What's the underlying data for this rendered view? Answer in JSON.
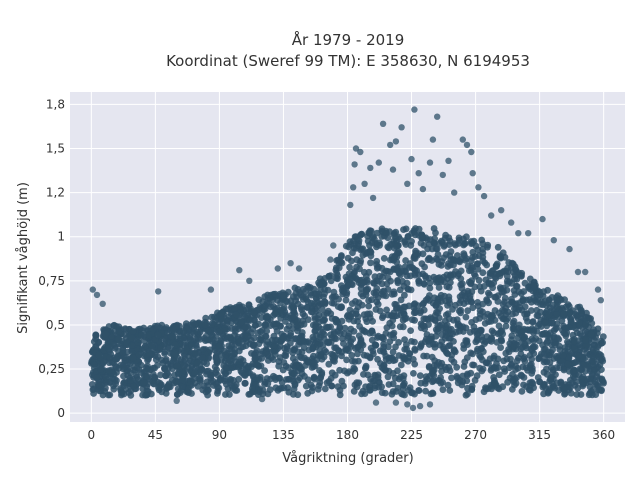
{
  "chart_data": {
    "type": "scatter",
    "title_lines": [
      "År 1979 - 2019",
      "Koordinat (Sweref 99 TM): E 358630, N 6194953"
    ],
    "xlabel": "Vågriktning (grader)",
    "ylabel": "Signifikant våghöjd (m)",
    "xlim": [
      -15,
      375
    ],
    "ylim": [
      -0.05,
      1.82
    ],
    "x_ticks": [
      0,
      45,
      90,
      135,
      180,
      225,
      270,
      315,
      360
    ],
    "x_tick_labels": [
      "0",
      "45",
      "90",
      "135",
      "180",
      "225",
      "270",
      "315",
      "360"
    ],
    "y_ticks": [
      0,
      0.25,
      0.5,
      0.75,
      1,
      1.25,
      1.5,
      1.75
    ],
    "y_tick_labels": [
      "0",
      "0,25",
      "0,5",
      "0,75",
      "1",
      "1,2",
      "1,5",
      "1,8"
    ],
    "grid": true,
    "marker_color": "#2f5169",
    "plot_background": "#e5e6f0",
    "upper_envelope": [
      [
        0,
        0.45
      ],
      [
        15,
        0.5
      ],
      [
        30,
        0.48
      ],
      [
        45,
        0.5
      ],
      [
        60,
        0.5
      ],
      [
        75,
        0.52
      ],
      [
        90,
        0.58
      ],
      [
        105,
        0.62
      ],
      [
        120,
        0.66
      ],
      [
        135,
        0.7
      ],
      [
        150,
        0.72
      ],
      [
        165,
        0.78
      ],
      [
        175,
        0.92
      ],
      [
        185,
        1.0
      ],
      [
        200,
        1.05
      ],
      [
        215,
        1.05
      ],
      [
        225,
        1.05
      ],
      [
        240,
        1.05
      ],
      [
        255,
        1.0
      ],
      [
        270,
        1.0
      ],
      [
        285,
        0.95
      ],
      [
        300,
        0.82
      ],
      [
        315,
        0.72
      ],
      [
        330,
        0.66
      ],
      [
        345,
        0.6
      ],
      [
        360,
        0.45
      ]
    ],
    "lower_bound": 0.1,
    "outliers": [
      {
        "x": 1,
        "y": 0.7
      },
      {
        "x": 4,
        "y": 0.67
      },
      {
        "x": 8,
        "y": 0.62
      },
      {
        "x": 47,
        "y": 0.69
      },
      {
        "x": 84,
        "y": 0.7
      },
      {
        "x": 104,
        "y": 0.81
      },
      {
        "x": 111,
        "y": 0.75
      },
      {
        "x": 131,
        "y": 0.82
      },
      {
        "x": 140,
        "y": 0.85
      },
      {
        "x": 146,
        "y": 0.82
      },
      {
        "x": 168,
        "y": 0.87
      },
      {
        "x": 170,
        "y": 0.95
      },
      {
        "x": 182,
        "y": 1.18
      },
      {
        "x": 184,
        "y": 1.28
      },
      {
        "x": 185,
        "y": 1.41
      },
      {
        "x": 186,
        "y": 1.5
      },
      {
        "x": 189,
        "y": 1.48
      },
      {
        "x": 192,
        "y": 1.3
      },
      {
        "x": 196,
        "y": 1.39
      },
      {
        "x": 198,
        "y": 1.22
      },
      {
        "x": 202,
        "y": 1.42
      },
      {
        "x": 205,
        "y": 1.64
      },
      {
        "x": 210,
        "y": 1.52
      },
      {
        "x": 212,
        "y": 1.38
      },
      {
        "x": 214,
        "y": 1.54
      },
      {
        "x": 218,
        "y": 1.62
      },
      {
        "x": 222,
        "y": 1.3
      },
      {
        "x": 225,
        "y": 1.44
      },
      {
        "x": 227,
        "y": 1.72
      },
      {
        "x": 230,
        "y": 1.36
      },
      {
        "x": 233,
        "y": 1.27
      },
      {
        "x": 238,
        "y": 1.42
      },
      {
        "x": 240,
        "y": 1.55
      },
      {
        "x": 243,
        "y": 1.68
      },
      {
        "x": 247,
        "y": 1.35
      },
      {
        "x": 251,
        "y": 1.43
      },
      {
        "x": 255,
        "y": 1.25
      },
      {
        "x": 261,
        "y": 1.55
      },
      {
        "x": 264,
        "y": 1.52
      },
      {
        "x": 267,
        "y": 1.48
      },
      {
        "x": 268,
        "y": 1.36
      },
      {
        "x": 272,
        "y": 1.28
      },
      {
        "x": 276,
        "y": 1.23
      },
      {
        "x": 281,
        "y": 1.12
      },
      {
        "x": 288,
        "y": 1.15
      },
      {
        "x": 295,
        "y": 1.08
      },
      {
        "x": 300,
        "y": 1.02
      },
      {
        "x": 307,
        "y": 1.02
      },
      {
        "x": 317,
        "y": 1.1
      },
      {
        "x": 325,
        "y": 0.98
      },
      {
        "x": 336,
        "y": 0.93
      },
      {
        "x": 342,
        "y": 0.8
      },
      {
        "x": 347,
        "y": 0.8
      },
      {
        "x": 356,
        "y": 0.7
      },
      {
        "x": 358,
        "y": 0.64
      },
      {
        "x": 222,
        "y": 0.05
      },
      {
        "x": 226,
        "y": 0.03
      },
      {
        "x": 231,
        "y": 0.04
      },
      {
        "x": 214,
        "y": 0.06
      },
      {
        "x": 238,
        "y": 0.05
      },
      {
        "x": 200,
        "y": 0.06
      },
      {
        "x": 120,
        "y": 0.08
      },
      {
        "x": 60,
        "y": 0.07
      }
    ]
  }
}
